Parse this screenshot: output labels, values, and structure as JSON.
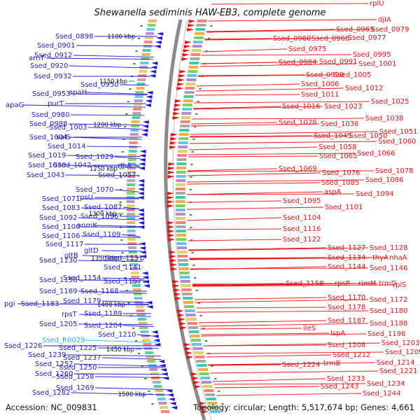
{
  "title": "Shewanella sediminis HAW-EB3, complete genome",
  "accession": "Accession: NC_009831",
  "summary": "Topology: circular; Length: 5,517,674 bp; Genes: 4,661",
  "colors": {
    "left_label": "#1d1dd6",
    "right_label": "#ee1111",
    "rna_label": "#25b9d8",
    "backbone": "#8a8a8a",
    "tick": "#2f8a2f"
  },
  "kbp_marks": [
    "1100 kbp",
    "1150 kbp",
    "1200 kbp",
    "1250 kbp",
    "1300 kbp",
    "1350 kbp",
    "1400 kbp",
    "1450 kbp",
    "1500 kbp"
  ],
  "left_labels": [
    "Ssed_0898",
    "Ssed_0901",
    "arnT",
    "Ssed_0912",
    "Ssed_0920",
    "Ssed_0932",
    "Ssed_0950",
    "Ssed_0953",
    "apaH",
    "apaG",
    "purT",
    "Ssed_0980",
    "Ssed_0988",
    "Ssed_1003",
    "Ssed_1004",
    "valS",
    "Ssed_1014",
    "Ssed_1019",
    "Ssed_1029",
    "Ssed_1030",
    "Ssed_1042",
    "Ssed_1043",
    "rihA",
    "Ssed_1057",
    "Ssed_1070",
    "Ssed_1071",
    "rpsU",
    "Ssed_1083",
    "Ssed_1087",
    "Ssed_1092",
    "Ssed_1096",
    "Ssed_1100",
    "anmK",
    "Ssed_1106",
    "Ssed_1109",
    "Ssed_1117",
    "gltD",
    "Ssed_1130",
    "gltB",
    "Ssed_1131",
    "Ssed_1141",
    "Ssed_1156",
    "Ssed_1154",
    "Ssed_1157",
    "Ssed_1169",
    "Ssed_1168",
    "pgi",
    "Ssed_1183",
    "Ssed_1179",
    "rpsT",
    "Ssed_1189",
    "Ssed_1205",
    "Ssed_1204",
    "Ssed_1210",
    "Ssed_R0029",
    "Ssed_1226",
    "Ssed_1225",
    "Ssed_1239",
    "Ssed_1237",
    "Ssed_1252",
    "Ssed_1250",
    "Ssed_1260",
    "Ssed_1258",
    "Ssed_1269",
    "Ssed_1282"
  ],
  "right_labels": [
    "rplU",
    "djlA",
    "Ssed_0969",
    "Ssed_0979",
    "Ssed_0960",
    "Ssed_0968",
    "Ssed_0977",
    "Ssed_0975",
    "Ssed_0995",
    "Ssed_0984",
    "Ssed_0991",
    "Ssed_1001",
    "Ssed_0999",
    "Ssed_1005",
    "Ssed_1006",
    "Ssed_1012",
    "Ssed_1011",
    "Ssed_1025",
    "Ssed_1016",
    "Ssed_1023",
    "Ssed_1038",
    "Ssed_1028",
    "Ssed_1036",
    "Ssed_1051",
    "Ssed_1045",
    "Ssed_1050",
    "Ssed_1060",
    "Ssed_1058",
    "Ssed_1065",
    "Ssed_1066",
    "Ssed_1069",
    "Ssed_1076",
    "Ssed_1078",
    "Ssed_1085",
    "Ssed_1086",
    "aspA",
    "Ssed_1094",
    "Ssed_1095",
    "Ssed_1101",
    "Ssed_1104",
    "Ssed_1116",
    "Ssed_1122",
    "Ssed_1127",
    "Ssed_1128",
    "Ssed_1134",
    "thyA",
    "nhaA",
    "Ssed_1144",
    "Ssed_1146",
    "Ssed_1158",
    "rpsP",
    "rimM",
    "trmD",
    "rplS",
    "Ssed_1170",
    "Ssed_1172",
    "Ssed_1178",
    "Ssed_1180",
    "Ssed_1187",
    "Ssed_1188",
    "ileS",
    "lspA",
    "Ssed_1196",
    "Ssed_1203",
    "Ssed_1208",
    "Ssed_1209",
    "Ssed_1212",
    "Ssed_1214",
    "Ssed_1224",
    "trmB",
    "Ssed_1221",
    "Ssed_1233",
    "Ssed_1234",
    "Ssed_1243",
    "Ssed_1244"
  ]
}
